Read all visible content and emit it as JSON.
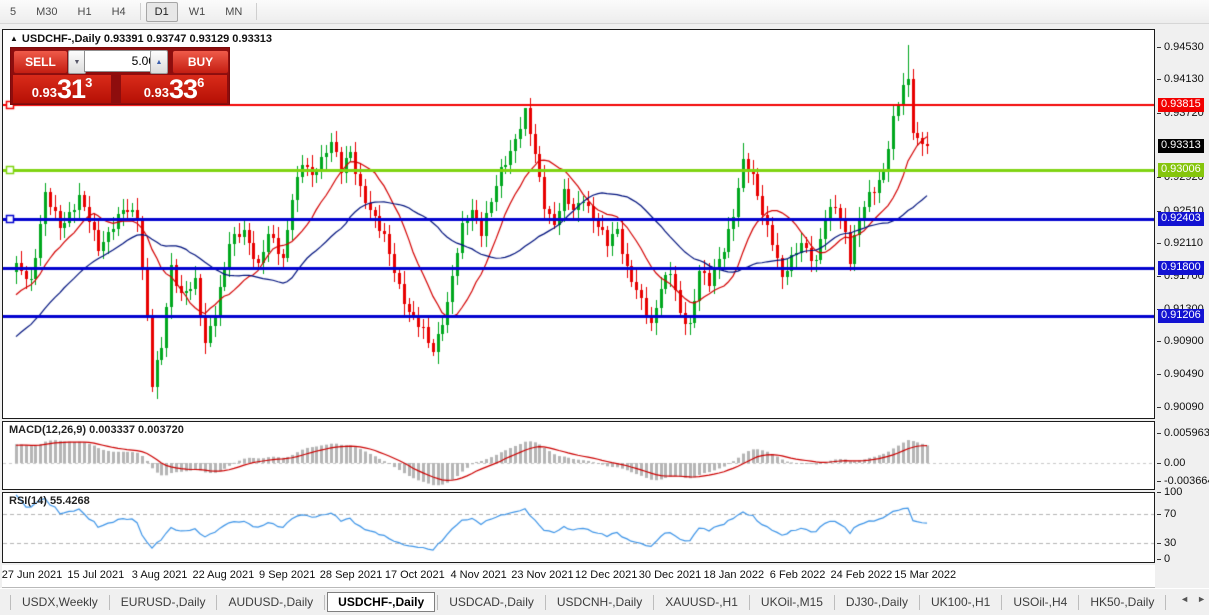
{
  "toolbar": {
    "timeframes": [
      {
        "label": "5",
        "active": false
      },
      {
        "label": "M30",
        "active": false
      },
      {
        "label": "H1",
        "active": false
      },
      {
        "label": "H4",
        "active": false
      },
      {
        "sep": true
      },
      {
        "label": "D1",
        "active": true
      },
      {
        "label": "W1",
        "active": false
      },
      {
        "label": "MN",
        "active": false
      },
      {
        "sep": true
      }
    ]
  },
  "chart": {
    "arrow": "▲",
    "title": "USDCHF-,Daily",
    "ohlc": "0.93391 0.93747 0.93129 0.93313"
  },
  "trade_panel": {
    "sell_label": "SELL",
    "buy_label": "BUY",
    "volume": "5.00",
    "spin_down": "▼",
    "spin_up": "▲",
    "sell_prefix": "0.93",
    "sell_big": "31",
    "sell_sup": "3",
    "buy_prefix": "0.93",
    "buy_big": "33",
    "buy_sup": "6"
  },
  "macd_panel": {
    "label": "MACD(12,26,9)",
    "values": "0.003337 0.003720",
    "axis": [
      {
        "v": 0.005963,
        "label": "0.005963"
      },
      {
        "v": 0.0,
        "label": "0.00"
      },
      {
        "v": -0.003664,
        "label": "-0.003664"
      }
    ]
  },
  "rsi_panel": {
    "label": "RSI(14)",
    "value": "55.4268",
    "axis": [
      {
        "v": 100,
        "label": "100"
      },
      {
        "v": 70,
        "label": "70"
      },
      {
        "v": 30,
        "label": "30"
      },
      {
        "v": 0,
        "label": "0"
      }
    ]
  },
  "price_axis": {
    "ticks": [
      {
        "price": 0.9453,
        "label": "0.94530"
      },
      {
        "price": 0.9413,
        "label": "0.94130"
      },
      {
        "price": 0.9372,
        "label": "0.93720"
      },
      {
        "price": 0.9292,
        "label": "0.92920"
      },
      {
        "price": 0.9251,
        "label": "0.92510"
      },
      {
        "price": 0.9211,
        "label": "0.92110"
      },
      {
        "price": 0.917,
        "label": "0.91700"
      },
      {
        "price": 0.913,
        "label": "0.91300"
      },
      {
        "price": 0.909,
        "label": "0.90900"
      },
      {
        "price": 0.9049,
        "label": "0.90490"
      },
      {
        "price": 0.9009,
        "label": "0.90090"
      }
    ],
    "badges": [
      {
        "price": 0.93815,
        "label": "0.93815",
        "bg": "#f20000"
      },
      {
        "price": 0.93313,
        "label": "0.93313",
        "bg": "#000000"
      },
      {
        "price": 0.93006,
        "label": "0.93006",
        "bg": "#85c50c"
      },
      {
        "price": 0.92403,
        "label": "0.92403",
        "bg": "#1212d2"
      },
      {
        "price": 0.918,
        "label": "0.91800",
        "bg": "#1212d2"
      },
      {
        "price": 0.91206,
        "label": "0.91206",
        "bg": "#1212d2"
      }
    ]
  },
  "tabs": {
    "items": [
      {
        "label": "USDX,Weekly",
        "active": false
      },
      {
        "label": "EURUSD-,Daily",
        "active": false
      },
      {
        "label": "AUDUSD-,Daily",
        "active": false
      },
      {
        "label": "USDCHF-,Daily",
        "active": true
      },
      {
        "label": "USDCAD-,Daily",
        "active": false
      },
      {
        "label": "USDCNH-,Daily",
        "active": false
      },
      {
        "label": "XAUUSD-,H1",
        "active": false
      },
      {
        "label": "UKOil-,M15",
        "active": false
      },
      {
        "label": "DJ30-,Daily",
        "active": false
      },
      {
        "label": "UK100-,H1",
        "active": false
      },
      {
        "label": "USOil-,H4",
        "active": false
      },
      {
        "label": "HK50-,Daily",
        "active": false
      }
    ],
    "scroll_left": "◄",
    "scroll_right": "►"
  },
  "chart_data": {
    "type": "candlestick",
    "symbol": "USDCHF-",
    "timeframe": "Daily",
    "last_ohlc": {
      "open": 0.93391,
      "high": 0.93747,
      "low": 0.93129,
      "close": 0.93313
    },
    "ylim": [
      0.8995,
      0.9474
    ],
    "num_candles": 189,
    "bull_color": "#00a81e",
    "bear_color": "#e80000",
    "anchors": [
      [
        0,
        0.918
      ],
      [
        3,
        0.9165
      ],
      [
        6,
        0.927
      ],
      [
        9,
        0.923
      ],
      [
        13,
        0.9268
      ],
      [
        17,
        0.9205
      ],
      [
        20,
        0.9235
      ],
      [
        22,
        0.925
      ],
      [
        25,
        0.9245
      ],
      [
        26,
        0.918
      ],
      [
        27,
        0.912
      ],
      [
        28,
        0.9038
      ],
      [
        29,
        0.906
      ],
      [
        30,
        0.908
      ],
      [
        32,
        0.918
      ],
      [
        34,
        0.915
      ],
      [
        37,
        0.916
      ],
      [
        39,
        0.9085
      ],
      [
        41,
        0.913
      ],
      [
        44,
        0.921
      ],
      [
        47,
        0.9225
      ],
      [
        50,
        0.9185
      ],
      [
        52,
        0.922
      ],
      [
        55,
        0.919
      ],
      [
        57,
        0.927
      ],
      [
        59,
        0.931
      ],
      [
        61,
        0.929
      ],
      [
        63,
        0.9315
      ],
      [
        65,
        0.934
      ],
      [
        67,
        0.93
      ],
      [
        69,
        0.932
      ],
      [
        71,
        0.928
      ],
      [
        74,
        0.924
      ],
      [
        76,
        0.9215
      ],
      [
        79,
        0.916
      ],
      [
        81,
        0.9125
      ],
      [
        84,
        0.91
      ],
      [
        86,
        0.908
      ],
      [
        89,
        0.9135
      ],
      [
        92,
        0.923
      ],
      [
        94,
        0.9255
      ],
      [
        96,
        0.9225
      ],
      [
        98,
        0.926
      ],
      [
        100,
        0.93
      ],
      [
        103,
        0.934
      ],
      [
        105,
        0.937
      ],
      [
        107,
        0.932
      ],
      [
        109,
        0.926
      ],
      [
        111,
        0.9235
      ],
      [
        113,
        0.927
      ],
      [
        115,
        0.925
      ],
      [
        117,
        0.927
      ],
      [
        119,
        0.924
      ],
      [
        122,
        0.921
      ],
      [
        124,
        0.923
      ],
      [
        126,
        0.918
      ],
      [
        128,
        0.915
      ],
      [
        131,
        0.911
      ],
      [
        133,
        0.916
      ],
      [
        135,
        0.9175
      ],
      [
        137,
        0.912
      ],
      [
        139,
        0.911
      ],
      [
        141,
        0.918
      ],
      [
        143,
        0.916
      ],
      [
        146,
        0.9205
      ],
      [
        148,
        0.925
      ],
      [
        150,
        0.931
      ],
      [
        152,
        0.929
      ],
      [
        154,
        0.925
      ],
      [
        156,
        0.9215
      ],
      [
        158,
        0.9165
      ],
      [
        160,
        0.919
      ],
      [
        162,
        0.9215
      ],
      [
        165,
        0.9185
      ],
      [
        167,
        0.924
      ],
      [
        169,
        0.926
      ],
      [
        171,
        0.9225
      ],
      [
        172,
        0.919
      ],
      [
        174,
        0.924
      ],
      [
        176,
        0.927
      ],
      [
        178,
        0.929
      ],
      [
        179,
        0.93
      ],
      [
        180,
        0.933
      ],
      [
        181,
        0.936
      ],
      [
        182,
        0.938
      ],
      [
        183,
        0.9405
      ],
      [
        184,
        0.9412
      ],
      [
        185,
        0.9355
      ],
      [
        186,
        0.934
      ],
      [
        187,
        0.9335
      ],
      [
        188,
        0.93313
      ]
    ],
    "wick_overrides": {
      "6": {
        "high": 0.9285
      },
      "28": {
        "low": 0.9027
      },
      "86": {
        "low": 0.9072
      },
      "105": {
        "high": 0.9373
      },
      "150": {
        "high": 0.9335
      },
      "184": {
        "high": 0.9455
      }
    },
    "pre_history": {
      "start": 0.895,
      "end": 0.9172,
      "count": 40
    },
    "hlines": [
      {
        "price": 0.93815,
        "color": "#f20000",
        "width": 2,
        "handle": true
      },
      {
        "price": 0.93006,
        "color": "#7fd411",
        "width": 3,
        "handle": true
      },
      {
        "price": 0.92403,
        "color": "#0202cf",
        "width": 3,
        "handle": true
      },
      {
        "price": 0.918,
        "color": "#0202cf",
        "width": 3,
        "handle": false
      },
      {
        "price": 0.91206,
        "color": "#0202cf",
        "width": 3,
        "handle": false
      }
    ],
    "moving_averages": [
      {
        "period": 12,
        "color": "#d40000"
      },
      {
        "period": 30,
        "color": "#00127e"
      }
    ],
    "macd": {
      "fast": 12,
      "slow": 26,
      "signal": 9,
      "hist_color": "#b5b5b5",
      "signal_color": "#cc0000",
      "axis_max": 0.005963,
      "axis_min": -0.003664
    },
    "rsi": {
      "period": 14,
      "color": "#3e95e8",
      "levels": [
        70,
        30
      ]
    },
    "dates": [
      "27 Jun 2021",
      "15 Jul 2021",
      "3 Aug 2021",
      "22 Aug 2021",
      "9 Sep 2021",
      "28 Sep 2021",
      "17 Oct 2021",
      "4 Nov 2021",
      "23 Nov 2021",
      "12 Dec 2021",
      "30 Dec 2021",
      "18 Jan 2022",
      "6 Feb 2022",
      "24 Feb 2022",
      "15 Mar 2022"
    ]
  }
}
